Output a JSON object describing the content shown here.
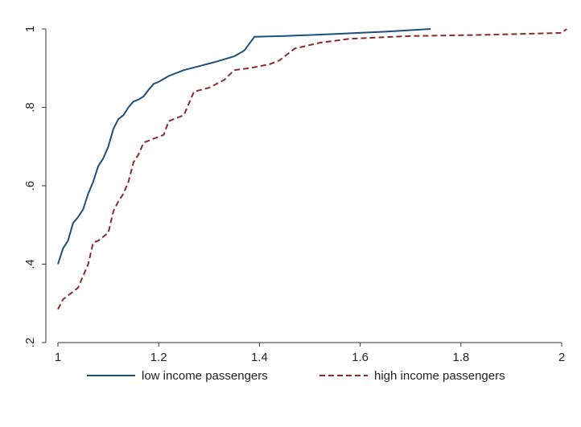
{
  "chart_data": {
    "type": "line",
    "title": "",
    "xlabel": "",
    "ylabel": "",
    "xlim": [
      1,
      2
    ],
    "ylim": [
      0.2,
      1
    ],
    "x_ticks": [
      1,
      1.2,
      1.4,
      1.6,
      1.8,
      2
    ],
    "x_tick_labels": [
      "1",
      "1.2",
      "1.4",
      "1.6",
      "1.8",
      "2"
    ],
    "y_ticks": [
      0.2,
      0.4,
      0.6,
      0.8,
      1
    ],
    "y_tick_labels": [
      ".2",
      ".4",
      ".6",
      ".8",
      "1"
    ],
    "grid": false,
    "legend": "bottom",
    "series": [
      {
        "name": "low income passengers",
        "color": "#1f4e79",
        "style": "solid",
        "x": [
          1.0,
          1.01,
          1.02,
          1.03,
          1.04,
          1.05,
          1.06,
          1.07,
          1.08,
          1.09,
          1.1,
          1.11,
          1.12,
          1.13,
          1.14,
          1.15,
          1.16,
          1.17,
          1.18,
          1.19,
          1.2,
          1.22,
          1.25,
          1.28,
          1.31,
          1.35,
          1.37,
          1.39,
          1.45,
          1.55,
          1.65,
          1.74
        ],
        "y": [
          0.4,
          0.44,
          0.46,
          0.505,
          0.52,
          0.54,
          0.58,
          0.61,
          0.65,
          0.67,
          0.7,
          0.745,
          0.77,
          0.78,
          0.8,
          0.815,
          0.82,
          0.828,
          0.845,
          0.86,
          0.865,
          0.88,
          0.895,
          0.905,
          0.915,
          0.93,
          0.945,
          0.98,
          0.982,
          0.987,
          0.993,
          1.0
        ]
      },
      {
        "name": "high income passengers",
        "color": "#8b2a2a",
        "style": "dashed",
        "x": [
          1.0,
          1.01,
          1.02,
          1.03,
          1.04,
          1.05,
          1.06,
          1.07,
          1.08,
          1.09,
          1.1,
          1.11,
          1.12,
          1.13,
          1.14,
          1.15,
          1.16,
          1.17,
          1.18,
          1.19,
          1.2,
          1.21,
          1.22,
          1.23,
          1.24,
          1.25,
          1.26,
          1.27,
          1.3,
          1.33,
          1.35,
          1.38,
          1.42,
          1.44,
          1.47,
          1.52,
          1.58,
          1.7,
          1.85,
          2.0,
          2.01
        ],
        "y": [
          0.285,
          0.31,
          0.32,
          0.33,
          0.34,
          0.37,
          0.4,
          0.455,
          0.46,
          0.47,
          0.48,
          0.535,
          0.56,
          0.58,
          0.61,
          0.66,
          0.68,
          0.71,
          0.715,
          0.72,
          0.725,
          0.73,
          0.765,
          0.77,
          0.775,
          0.78,
          0.81,
          0.84,
          0.85,
          0.87,
          0.895,
          0.9,
          0.91,
          0.92,
          0.95,
          0.965,
          0.975,
          0.982,
          0.985,
          0.99,
          1.0
        ]
      }
    ]
  }
}
